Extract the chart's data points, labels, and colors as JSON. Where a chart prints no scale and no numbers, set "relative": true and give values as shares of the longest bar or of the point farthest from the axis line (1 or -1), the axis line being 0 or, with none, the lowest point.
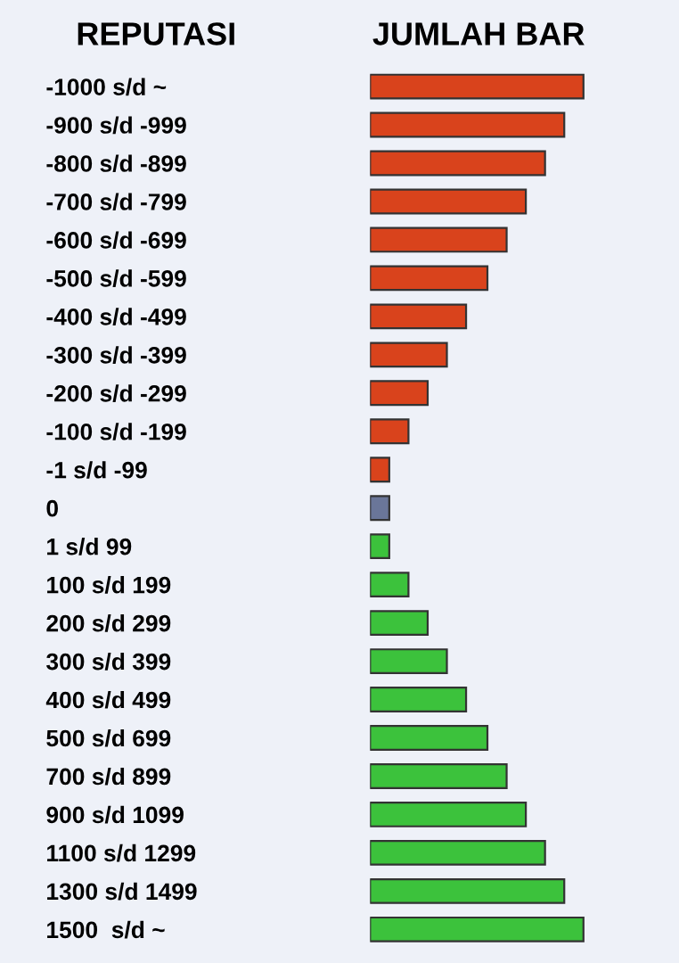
{
  "chart_data": {
    "type": "bar",
    "orientation": "horizontal",
    "relative": true,
    "ylabel": "REPUTASI",
    "xlabel": "JUMLAH BAR",
    "categories": [
      "-1000 s/d ~",
      "-900 s/d -999",
      "-800 s/d -899",
      "-700 s/d -799",
      "-600 s/d -699",
      "-500 s/d -599",
      "-400 s/d -499",
      "-300 s/d -399",
      "-200 s/d -299",
      "-100 s/d -199",
      "-1 s/d -99",
      "0",
      "1 s/d 99",
      "100 s/d 199",
      "200 s/d 299",
      "300 s/d 399",
      "400 s/d 499",
      "500 s/d 699",
      "700 s/d 899",
      "900 s/d 1099",
      "1100 s/d 1299",
      "1300 s/d 1499",
      "1500  s/d ~"
    ],
    "values": [
      1,
      0.91,
      0.82,
      0.73,
      0.64,
      0.55,
      0.45,
      0.36,
      0.27,
      0.18,
      0.09,
      0.09,
      0.09,
      0.18,
      0.27,
      0.36,
      0.45,
      0.55,
      0.64,
      0.73,
      0.82,
      0.91,
      1
    ],
    "colors": [
      "#d9431c",
      "#d9431c",
      "#d9431c",
      "#d9431c",
      "#d9431c",
      "#d9431c",
      "#d9431c",
      "#d9431c",
      "#d9431c",
      "#d9431c",
      "#d9431c",
      "#6a7699",
      "#3cc23c",
      "#3cc23c",
      "#3cc23c",
      "#3cc23c",
      "#3cc23c",
      "#3cc23c",
      "#3cc23c",
      "#3cc23c",
      "#3cc23c",
      "#3cc23c",
      "#3cc23c"
    ]
  }
}
